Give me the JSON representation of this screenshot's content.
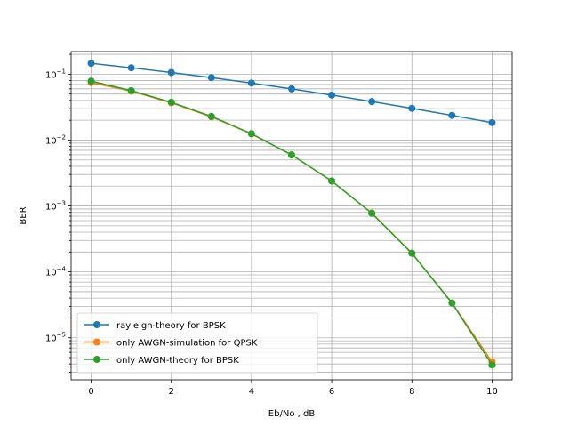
{
  "chart_data": {
    "type": "line",
    "xlabel": "Eb/No , dB",
    "ylabel": "BER",
    "yscale": "log",
    "xlim": [
      -0.5,
      10.5
    ],
    "ylim": [
      2.3e-06,
      0.22
    ],
    "grid": "on (major and minor)",
    "legend_position": "lower-left",
    "x_ticks": [
      0,
      2,
      4,
      6,
      8,
      10
    ],
    "x_tick_labels": [
      "0",
      "2",
      "4",
      "6",
      "8",
      "10"
    ],
    "y_ticks": [
      1e-05,
      0.0001,
      0.001,
      0.01,
      0.1
    ],
    "y_tick_labels": [
      {
        "base": "10",
        "exp": "−5"
      },
      {
        "base": "10",
        "exp": "−4"
      },
      {
        "base": "10",
        "exp": "−3"
      },
      {
        "base": "10",
        "exp": "−2"
      },
      {
        "base": "10",
        "exp": "−1"
      }
    ],
    "x": [
      0,
      1,
      2,
      3,
      4,
      5,
      6,
      7,
      8,
      9,
      10
    ],
    "series": [
      {
        "name": "rayleigh-theory for BPSK",
        "color": "#1f77b4",
        "marker": "circle",
        "values": [
          0.146,
          0.125,
          0.106,
          0.0887,
          0.0734,
          0.0598,
          0.0482,
          0.0384,
          0.0303,
          0.0237,
          0.0184
        ]
      },
      {
        "name": "only AWGN-simulation for QPSK",
        "color": "#ff7f0e",
        "marker": "circle",
        "values": [
          0.0745,
          0.0553,
          0.0368,
          0.0225,
          0.0124,
          0.00598,
          0.00239,
          0.00078,
          0.000193,
          3.37e-05,
          4.3e-06
        ]
      },
      {
        "name": "only AWGN-theory for BPSK",
        "color": "#2ca02c",
        "marker": "circle",
        "values": [
          0.0786,
          0.0563,
          0.0375,
          0.0229,
          0.0125,
          0.00595,
          0.00239,
          0.000773,
          0.000191,
          3.36e-05,
          3.87e-06
        ]
      }
    ]
  }
}
